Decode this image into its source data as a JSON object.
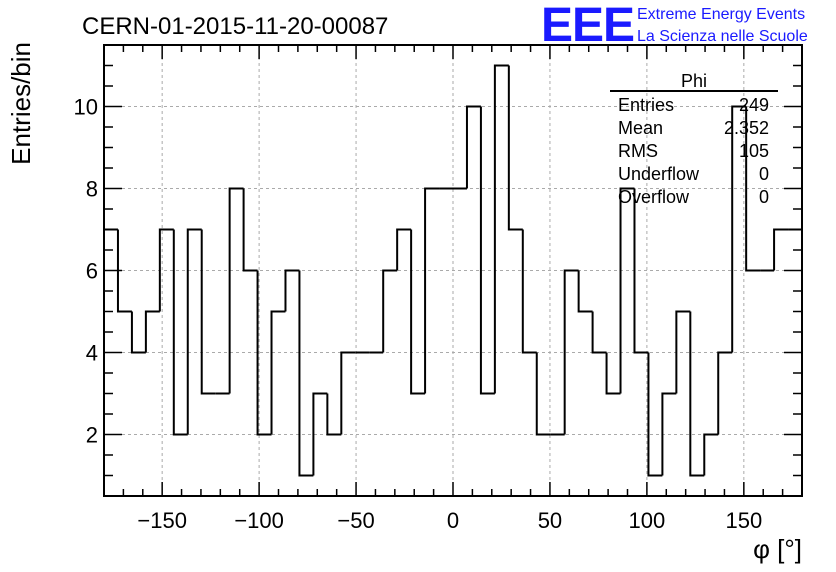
{
  "header": {
    "title": "CERN-01-2015-11-20-00087",
    "brand_logo": "EEE",
    "brand_line1": "Extreme Energy Events",
    "brand_line2": "La Scienza nelle Scuole",
    "brand_color": "#1a1aff"
  },
  "stats_box": {
    "name": "Phi",
    "rows": [
      {
        "label": "Entries",
        "value": "249"
      },
      {
        "label": "Mean",
        "value": "2.352"
      },
      {
        "label": "RMS",
        "value": "105"
      },
      {
        "label": "Underflow",
        "value": "0"
      },
      {
        "label": "Overflow",
        "value": "0"
      }
    ]
  },
  "chart_data": {
    "type": "bar",
    "style": "step-histogram",
    "xlabel": "φ [°]",
    "ylabel": "Entries/bin",
    "xlim": [
      -180,
      180
    ],
    "ylim": [
      0.5,
      11.5
    ],
    "grid": true,
    "x_ticks": [
      -150,
      -100,
      -50,
      0,
      50,
      100,
      150
    ],
    "x_tick_labels": [
      "−150",
      "−100",
      "−50",
      "0",
      "50",
      "100",
      "150"
    ],
    "y_ticks": [
      2,
      4,
      6,
      8,
      10
    ],
    "y_tick_labels": [
      "2",
      "4",
      "6",
      "8",
      "10"
    ],
    "bin_width": 7.2,
    "bin_start": -180,
    "values": [
      7,
      5,
      4,
      5,
      7,
      2,
      7,
      3,
      3,
      8,
      6,
      2,
      5,
      6,
      1,
      3,
      2,
      4,
      4,
      4,
      6,
      7,
      3,
      8,
      8,
      8,
      10,
      3,
      11,
      7,
      4,
      2,
      2,
      6,
      5,
      4,
      3,
      8,
      4,
      1,
      3,
      5,
      1,
      2,
      4,
      10,
      6,
      6,
      7,
      7
    ]
  }
}
